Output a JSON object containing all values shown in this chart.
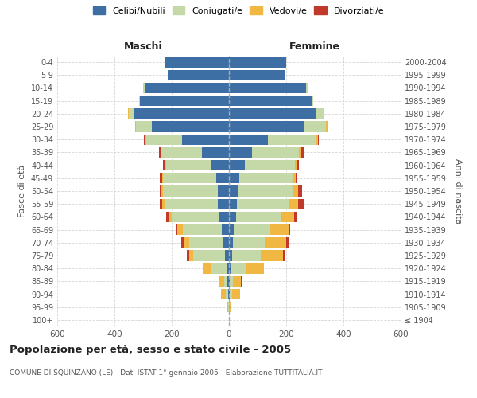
{
  "age_groups": [
    "100+",
    "95-99",
    "90-94",
    "85-89",
    "80-84",
    "75-79",
    "70-74",
    "65-69",
    "60-64",
    "55-59",
    "50-54",
    "45-49",
    "40-44",
    "35-39",
    "30-34",
    "25-29",
    "20-24",
    "15-19",
    "10-14",
    "5-9",
    "0-4"
  ],
  "birth_years": [
    "≤ 1904",
    "1905-1909",
    "1910-1914",
    "1915-1919",
    "1920-1924",
    "1925-1929",
    "1930-1934",
    "1935-1939",
    "1940-1944",
    "1945-1949",
    "1950-1954",
    "1955-1959",
    "1960-1964",
    "1965-1969",
    "1970-1974",
    "1975-1979",
    "1980-1984",
    "1985-1989",
    "1990-1994",
    "1995-1999",
    "2000-2004"
  ],
  "male_celibe": [
    0,
    1,
    3,
    5,
    8,
    15,
    20,
    25,
    35,
    40,
    40,
    45,
    65,
    95,
    165,
    270,
    330,
    310,
    295,
    215,
    225
  ],
  "male_coniugato": [
    0,
    2,
    8,
    12,
    55,
    110,
    120,
    135,
    165,
    185,
    190,
    185,
    155,
    140,
    125,
    55,
    20,
    5,
    5,
    0,
    0
  ],
  "male_vedovo": [
    0,
    2,
    18,
    18,
    28,
    15,
    18,
    20,
    12,
    8,
    5,
    3,
    2,
    2,
    2,
    2,
    2,
    0,
    0,
    0,
    0
  ],
  "male_divorziato": [
    0,
    0,
    0,
    0,
    0,
    8,
    8,
    5,
    8,
    10,
    8,
    8,
    8,
    8,
    5,
    2,
    2,
    0,
    0,
    0,
    0
  ],
  "female_celibe": [
    0,
    0,
    2,
    4,
    8,
    10,
    15,
    18,
    25,
    28,
    30,
    35,
    55,
    80,
    135,
    260,
    305,
    290,
    270,
    195,
    200
  ],
  "female_coniugata": [
    0,
    2,
    8,
    10,
    50,
    100,
    110,
    125,
    155,
    180,
    195,
    190,
    175,
    165,
    170,
    80,
    25,
    5,
    5,
    0,
    0
  ],
  "female_vedova": [
    0,
    5,
    28,
    28,
    65,
    80,
    75,
    65,
    48,
    35,
    18,
    8,
    5,
    5,
    5,
    5,
    2,
    0,
    0,
    0,
    0
  ],
  "female_divorziata": [
    0,
    0,
    0,
    2,
    0,
    8,
    8,
    5,
    12,
    20,
    12,
    5,
    10,
    10,
    5,
    2,
    2,
    0,
    0,
    0,
    0
  ],
  "color_celibe": "#3d6fa5",
  "color_coniugato": "#c5d9a8",
  "color_vedovo": "#f0b842",
  "color_divorziato": "#c0392b",
  "title": "Popolazione per età, sesso e stato civile - 2005",
  "subtitle": "COMUNE DI SQUINZANO (LE) - Dati ISTAT 1° gennaio 2005 - Elaborazione TUTTITALIA.IT",
  "xlabel_left": "Maschi",
  "xlabel_right": "Femmine",
  "ylabel_left": "Fasce di età",
  "ylabel_right": "Anni di nascita",
  "xlim": 600,
  "background_color": "#ffffff",
  "grid_color": "#cccccc"
}
